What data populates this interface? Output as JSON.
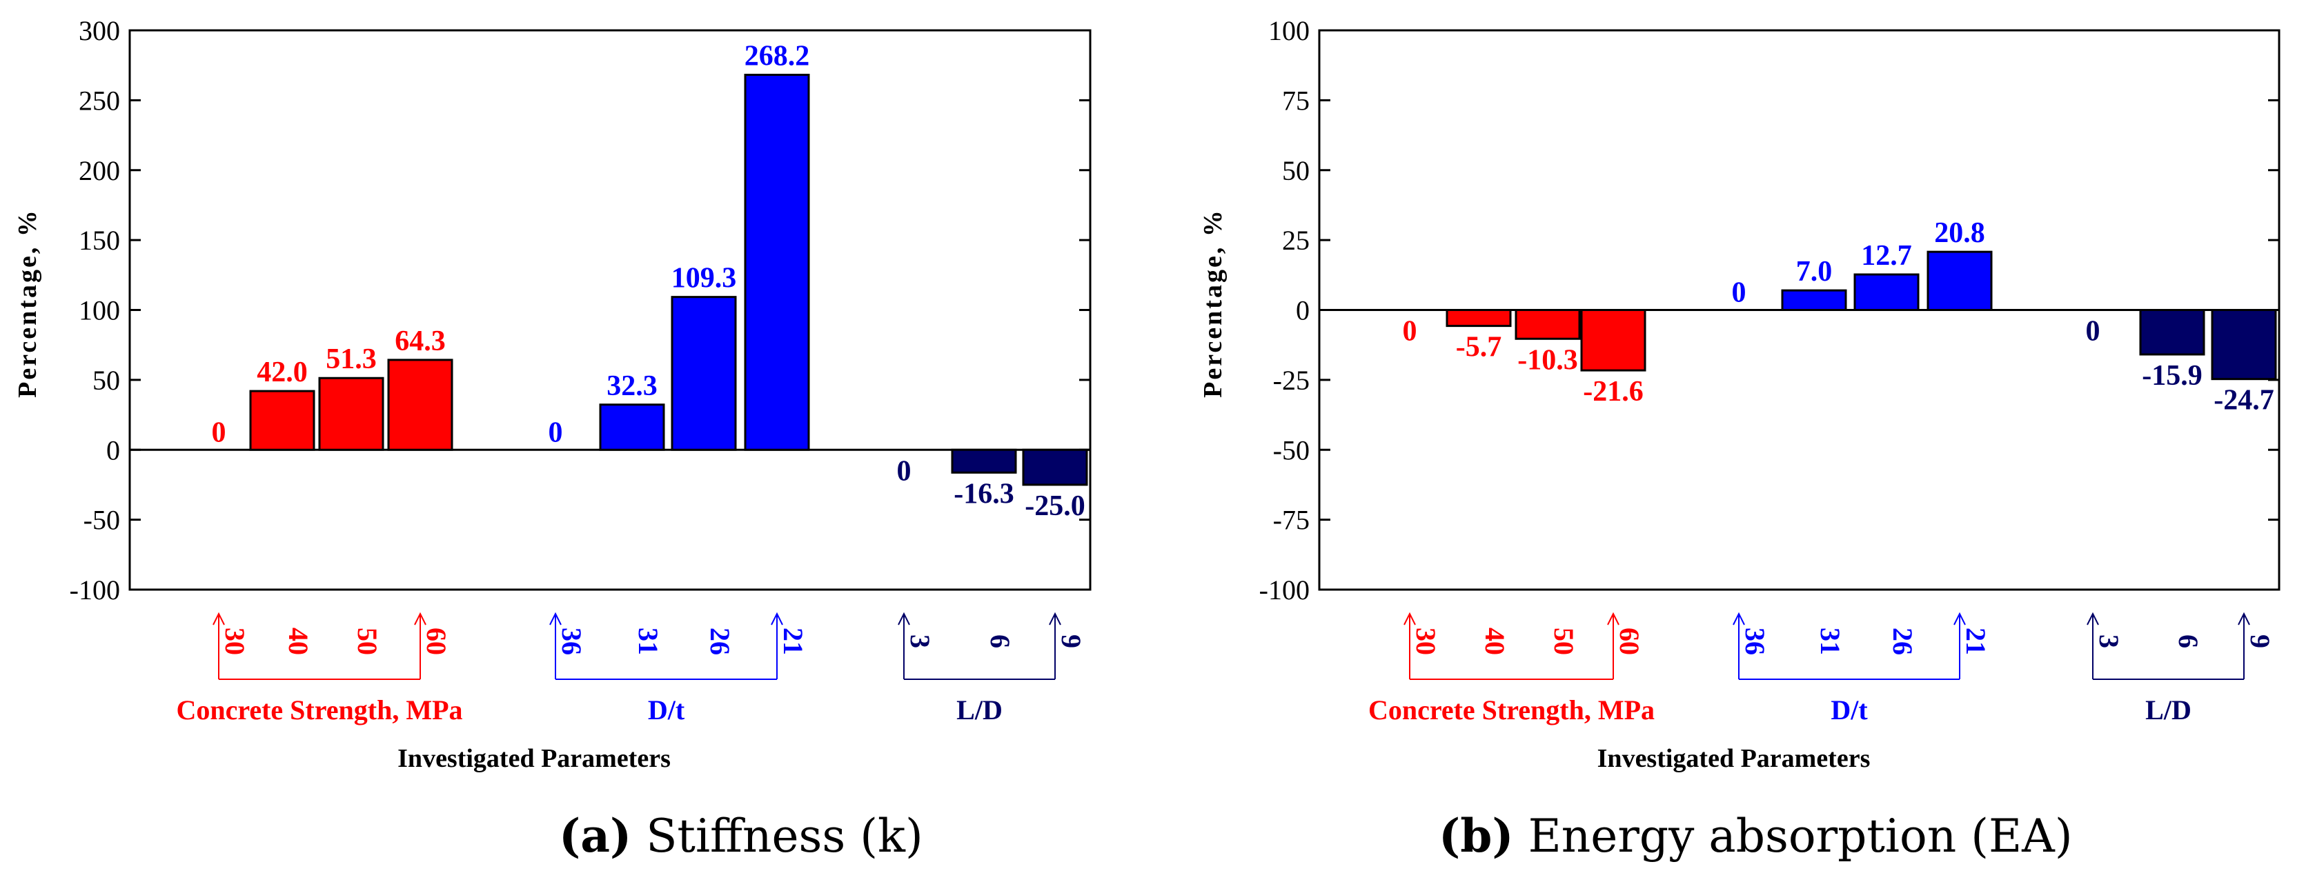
{
  "colors": {
    "red": "#ff0000",
    "blue": "#0000ff",
    "navy": "#000066",
    "axis": "#000000"
  },
  "chart_data": [
    {
      "type": "bar",
      "panel": "a",
      "caption_letter": "(a)",
      "caption_text": " Stiffness (k)",
      "ylabel": "Percentage, %",
      "xlabel": "Investigated Parameters",
      "ylim": [
        -100,
        300
      ],
      "yticks": [
        "300",
        "250",
        "200",
        "150",
        "100",
        "50",
        "0",
        "-50",
        "-100"
      ],
      "ytick_values": [
        300,
        250,
        200,
        150,
        100,
        50,
        0,
        -50,
        -100
      ],
      "grid": false,
      "groups": [
        {
          "name": "Concrete Strength, MPa",
          "color": "red",
          "categories": [
            "30",
            "40",
            "50",
            "60"
          ],
          "values": [
            0,
            42.0,
            51.3,
            64.3
          ],
          "labels": [
            "0",
            "42.0",
            "51.3",
            "64.3"
          ]
        },
        {
          "name": "D/t",
          "color": "blue",
          "categories": [
            "36",
            "31",
            "26",
            "21"
          ],
          "values": [
            0,
            32.3,
            109.3,
            268.2
          ],
          "labels": [
            "0",
            "32.3",
            "109.3",
            "268.2"
          ]
        },
        {
          "name": "L/D",
          "color": "navy",
          "categories": [
            "3",
            "6",
            "9"
          ],
          "values": [
            0,
            -16.3,
            -25.0
          ],
          "labels": [
            "0",
            "-16.3",
            "-25.0"
          ]
        }
      ]
    },
    {
      "type": "bar",
      "panel": "b",
      "caption_letter": "(b)",
      "caption_text": " Energy absorption (EA)",
      "ylabel": "Percentage, %",
      "xlabel": "Investigated Parameters",
      "ylim": [
        -100,
        100
      ],
      "yticks": [
        "100",
        "75",
        "50",
        "25",
        "0",
        "-25",
        "-50",
        "-75",
        "-100"
      ],
      "ytick_values": [
        100,
        75,
        50,
        25,
        0,
        -25,
        -50,
        -75,
        -100
      ],
      "grid": false,
      "groups": [
        {
          "name": "Concrete Strength, MPa",
          "color": "red",
          "categories": [
            "30",
            "40",
            "50",
            "60"
          ],
          "values": [
            0,
            -5.7,
            -10.3,
            -21.6
          ],
          "labels": [
            "0",
            "-5.7",
            "-10.3",
            "-21.6"
          ]
        },
        {
          "name": "D/t",
          "color": "blue",
          "categories": [
            "36",
            "31",
            "26",
            "21"
          ],
          "values": [
            0,
            7.0,
            12.7,
            20.8
          ],
          "labels": [
            "0",
            "7.0",
            "12.7",
            "20.8"
          ]
        },
        {
          "name": "L/D",
          "color": "navy",
          "categories": [
            "3",
            "6",
            "9"
          ],
          "values": [
            0,
            -15.9,
            -24.7
          ],
          "labels": [
            "0",
            "-15.9",
            "-24.7"
          ]
        }
      ]
    }
  ]
}
